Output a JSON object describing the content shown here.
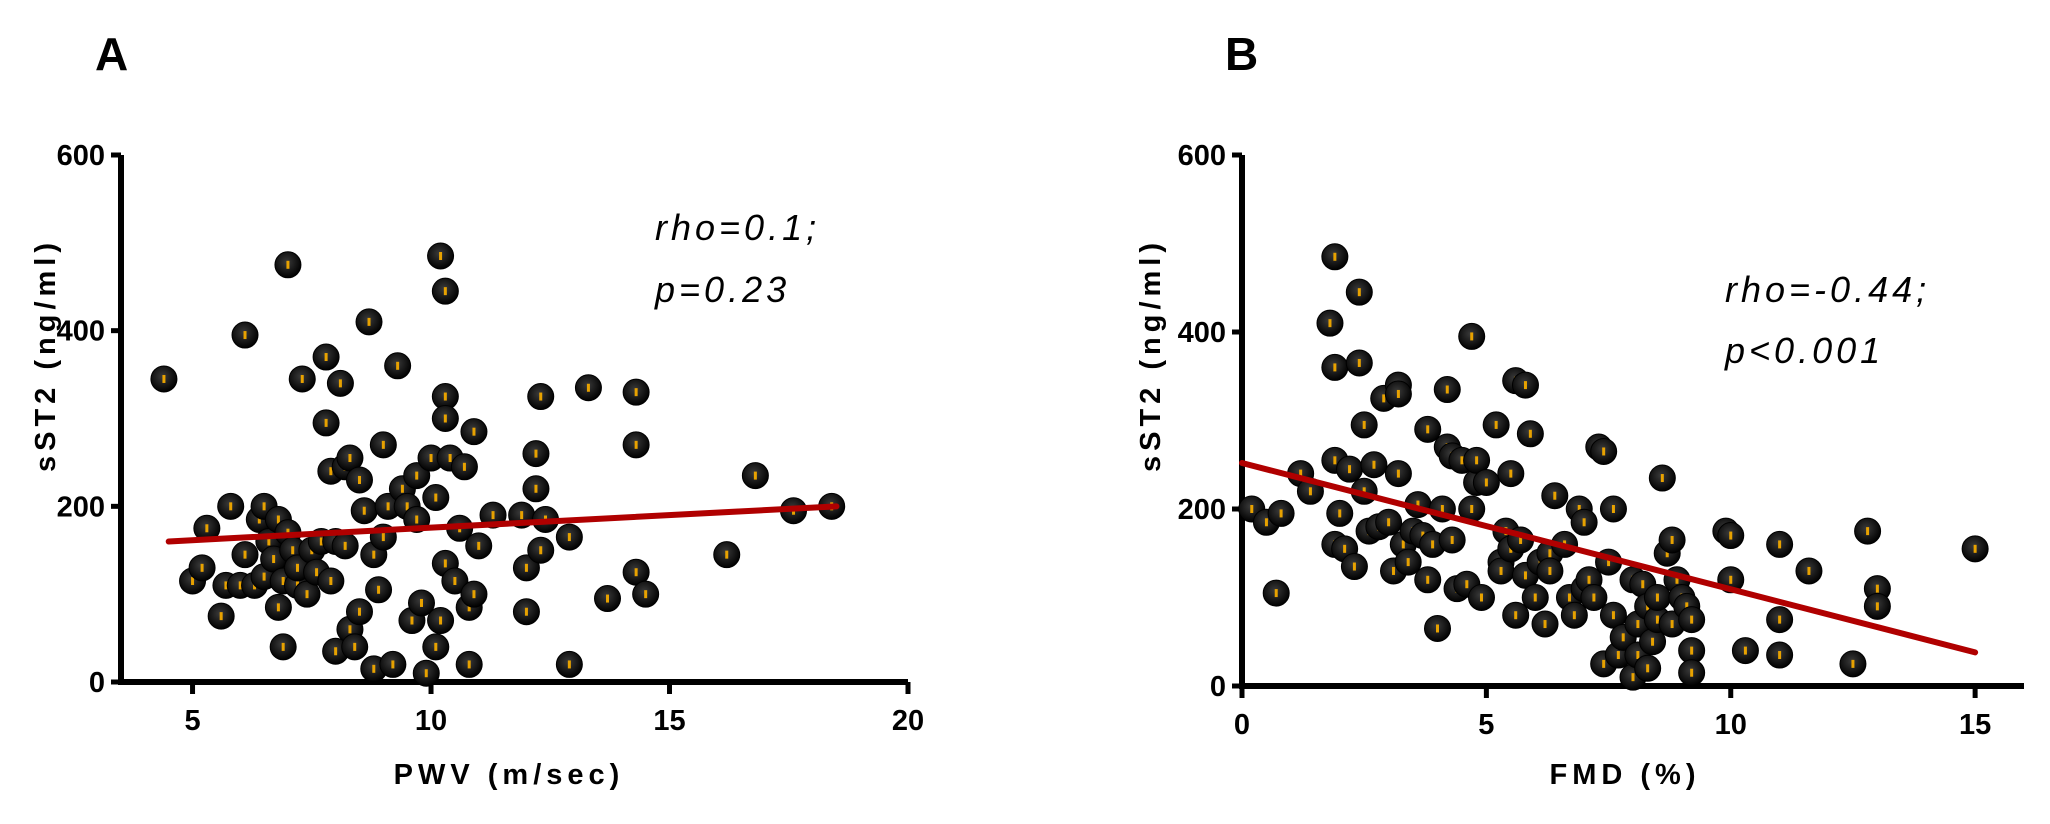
{
  "chart_data": [
    {
      "type": "scatter",
      "panel_label": "A",
      "title": "",
      "xlabel": "PWV (m/sec)",
      "ylabel": "sST2 (ng/ml)",
      "xlim": [
        3.5,
        20
      ],
      "ylim": [
        0,
        600
      ],
      "xticks": [
        5,
        10,
        15,
        20
      ],
      "yticks": [
        0,
        200,
        400,
        600
      ],
      "xtick_labels": [
        "5",
        "10",
        "15",
        "20"
      ],
      "ytick_labels": [
        "0",
        "200",
        "400",
        "600"
      ],
      "grid": false,
      "annotations": [
        "rho=0.1;",
        "p=0.23"
      ],
      "annotation_placement": "top-right",
      "marker_color": "#000000",
      "marker_accent_color": "#e8a200",
      "regression_line": {
        "color": "#b00000",
        "x": [
          4.5,
          18.5
        ],
        "y": [
          160,
          200
        ]
      },
      "series": [
        {
          "name": "patients",
          "points": [
            [
              4.4,
              345
            ],
            [
              5.0,
              115
            ],
            [
              5.2,
              130
            ],
            [
              5.3,
              175
            ],
            [
              5.6,
              75
            ],
            [
              5.7,
              110
            ],
            [
              5.8,
              200
            ],
            [
              6.0,
              110
            ],
            [
              6.1,
              395
            ],
            [
              6.1,
              145
            ],
            [
              6.3,
              110
            ],
            [
              6.4,
              185
            ],
            [
              6.5,
              200
            ],
            [
              6.5,
              120
            ],
            [
              6.6,
              160
            ],
            [
              6.7,
              140
            ],
            [
              6.8,
              85
            ],
            [
              6.8,
              185
            ],
            [
              6.9,
              40
            ],
            [
              6.9,
              115
            ],
            [
              7.0,
              475
            ],
            [
              7.0,
              170
            ],
            [
              7.1,
              150
            ],
            [
              7.2,
              110
            ],
            [
              7.2,
              130
            ],
            [
              7.3,
              345
            ],
            [
              7.4,
              100
            ],
            [
              7.5,
              150
            ],
            [
              7.6,
              125
            ],
            [
              7.7,
              160
            ],
            [
              7.8,
              370
            ],
            [
              7.8,
              295
            ],
            [
              7.9,
              240
            ],
            [
              7.9,
              115
            ],
            [
              8.0,
              160
            ],
            [
              8.0,
              35
            ],
            [
              8.1,
              340
            ],
            [
              8.2,
              245
            ],
            [
              8.2,
              155
            ],
            [
              8.3,
              255
            ],
            [
              8.3,
              60
            ],
            [
              8.4,
              40
            ],
            [
              8.5,
              80
            ],
            [
              8.5,
              230
            ],
            [
              8.6,
              195
            ],
            [
              8.7,
              410
            ],
            [
              8.8,
              145
            ],
            [
              8.8,
              15
            ],
            [
              8.9,
              105
            ],
            [
              9.0,
              270
            ],
            [
              9.0,
              165
            ],
            [
              9.1,
              200
            ],
            [
              9.2,
              20
            ],
            [
              9.3,
              360
            ],
            [
              9.4,
              220
            ],
            [
              9.5,
              200
            ],
            [
              9.6,
              70
            ],
            [
              9.7,
              235
            ],
            [
              9.7,
              185
            ],
            [
              9.8,
              90
            ],
            [
              9.9,
              10
            ],
            [
              10.0,
              255
            ],
            [
              10.1,
              210
            ],
            [
              10.1,
              40
            ],
            [
              10.2,
              485
            ],
            [
              10.2,
              70
            ],
            [
              10.3,
              445
            ],
            [
              10.3,
              325
            ],
            [
              10.3,
              300
            ],
            [
              10.3,
              135
            ],
            [
              10.4,
              255
            ],
            [
              10.5,
              115
            ],
            [
              10.6,
              175
            ],
            [
              10.7,
              245
            ],
            [
              10.8,
              20
            ],
            [
              10.8,
              85
            ],
            [
              10.9,
              285
            ],
            [
              10.9,
              100
            ],
            [
              11.0,
              155
            ],
            [
              11.3,
              190
            ],
            [
              11.9,
              190
            ],
            [
              12.0,
              80
            ],
            [
              12.0,
              130
            ],
            [
              12.2,
              260
            ],
            [
              12.2,
              220
            ],
            [
              12.3,
              325
            ],
            [
              12.3,
              150
            ],
            [
              12.4,
              185
            ],
            [
              12.9,
              165
            ],
            [
              12.9,
              20
            ],
            [
              13.3,
              335
            ],
            [
              13.7,
              95
            ],
            [
              14.3,
              330
            ],
            [
              14.3,
              270
            ],
            [
              14.3,
              125
            ],
            [
              14.5,
              100
            ],
            [
              16.2,
              145
            ],
            [
              16.8,
              235
            ],
            [
              17.6,
              195
            ],
            [
              18.4,
              200
            ]
          ]
        }
      ]
    },
    {
      "type": "scatter",
      "panel_label": "B",
      "title": "",
      "xlabel": "FMD (%)",
      "ylabel": "sST2 (ng/ml)",
      "xlim": [
        0,
        16
      ],
      "ylim": [
        0,
        600
      ],
      "xticks": [
        0,
        5,
        10,
        15
      ],
      "yticks": [
        0,
        200,
        400,
        600
      ],
      "xtick_labels": [
        "0",
        "5",
        "10",
        "15"
      ],
      "ytick_labels": [
        "0",
        "200",
        "400",
        "600"
      ],
      "grid": false,
      "annotations": [
        "rho=-0.44;",
        "p<0.001"
      ],
      "annotation_placement": "top-right",
      "marker_color": "#000000",
      "marker_accent_color": "#e8a200",
      "regression_line": {
        "color": "#b00000",
        "x": [
          0,
          15
        ],
        "y": [
          252,
          38
        ]
      },
      "series": [
        {
          "name": "patients",
          "points": [
            [
              0.2,
              200
            ],
            [
              0.5,
              185
            ],
            [
              0.7,
              105
            ],
            [
              0.8,
              195
            ],
            [
              1.2,
              240
            ],
            [
              1.4,
              220
            ],
            [
              1.8,
              410
            ],
            [
              1.9,
              485
            ],
            [
              1.9,
              360
            ],
            [
              1.9,
              255
            ],
            [
              1.9,
              160
            ],
            [
              2.0,
              195
            ],
            [
              2.1,
              155
            ],
            [
              2.2,
              245
            ],
            [
              2.3,
              135
            ],
            [
              2.4,
              445
            ],
            [
              2.4,
              365
            ],
            [
              2.5,
              220
            ],
            [
              2.5,
              295
            ],
            [
              2.6,
              175
            ],
            [
              2.7,
              250
            ],
            [
              2.8,
              180
            ],
            [
              2.9,
              325
            ],
            [
              3.0,
              185
            ],
            [
              3.1,
              130
            ],
            [
              3.2,
              340
            ],
            [
              3.2,
              330
            ],
            [
              3.2,
              240
            ],
            [
              3.3,
              160
            ],
            [
              3.4,
              140
            ],
            [
              3.5,
              175
            ],
            [
              3.6,
              205
            ],
            [
              3.7,
              170
            ],
            [
              3.8,
              290
            ],
            [
              3.8,
              120
            ],
            [
              3.9,
              160
            ],
            [
              4.0,
              65
            ],
            [
              4.1,
              200
            ],
            [
              4.2,
              335
            ],
            [
              4.2,
              270
            ],
            [
              4.3,
              260
            ],
            [
              4.3,
              165
            ],
            [
              4.4,
              110
            ],
            [
              4.5,
              255
            ],
            [
              4.6,
              115
            ],
            [
              4.7,
              395
            ],
            [
              4.7,
              200
            ],
            [
              4.8,
              230
            ],
            [
              4.8,
              255
            ],
            [
              4.9,
              100
            ],
            [
              5.0,
              230
            ],
            [
              5.2,
              295
            ],
            [
              5.3,
              140
            ],
            [
              5.3,
              130
            ],
            [
              5.4,
              175
            ],
            [
              5.5,
              240
            ],
            [
              5.5,
              155
            ],
            [
              5.6,
              345
            ],
            [
              5.6,
              80
            ],
            [
              5.7,
              165
            ],
            [
              5.8,
              340
            ],
            [
              5.8,
              125
            ],
            [
              5.9,
              285
            ],
            [
              6.0,
              100
            ],
            [
              6.1,
              140
            ],
            [
              6.2,
              70
            ],
            [
              6.3,
              150
            ],
            [
              6.3,
              130
            ],
            [
              6.4,
              215
            ],
            [
              6.6,
              160
            ],
            [
              6.7,
              100
            ],
            [
              6.8,
              80
            ],
            [
              6.9,
              200
            ],
            [
              7.0,
              185
            ],
            [
              7.0,
              110
            ],
            [
              7.1,
              120
            ],
            [
              7.2,
              100
            ],
            [
              7.3,
              270
            ],
            [
              7.4,
              265
            ],
            [
              7.4,
              25
            ],
            [
              7.5,
              140
            ],
            [
              7.6,
              200
            ],
            [
              7.6,
              80
            ],
            [
              7.7,
              35
            ],
            [
              7.8,
              55
            ],
            [
              8.0,
              120
            ],
            [
              8.0,
              10
            ],
            [
              8.1,
              70
            ],
            [
              8.1,
              35
            ],
            [
              8.2,
              115
            ],
            [
              8.3,
              90
            ],
            [
              8.3,
              20
            ],
            [
              8.4,
              50
            ],
            [
              8.5,
              75
            ],
            [
              8.5,
              100
            ],
            [
              8.6,
              235
            ],
            [
              8.7,
              150
            ],
            [
              8.8,
              165
            ],
            [
              8.8,
              70
            ],
            [
              8.9,
              120
            ],
            [
              9.0,
              100
            ],
            [
              9.1,
              90
            ],
            [
              9.2,
              75
            ],
            [
              9.2,
              40
            ],
            [
              9.2,
              15
            ],
            [
              9.9,
              175
            ],
            [
              10.0,
              120
            ],
            [
              10.0,
              170
            ],
            [
              10.3,
              40
            ],
            [
              11.0,
              160
            ],
            [
              11.0,
              75
            ],
            [
              11.0,
              35
            ],
            [
              11.6,
              130
            ],
            [
              12.5,
              25
            ],
            [
              12.8,
              175
            ],
            [
              13.0,
              110
            ],
            [
              13.0,
              90
            ],
            [
              15.0,
              155
            ]
          ]
        }
      ]
    }
  ]
}
